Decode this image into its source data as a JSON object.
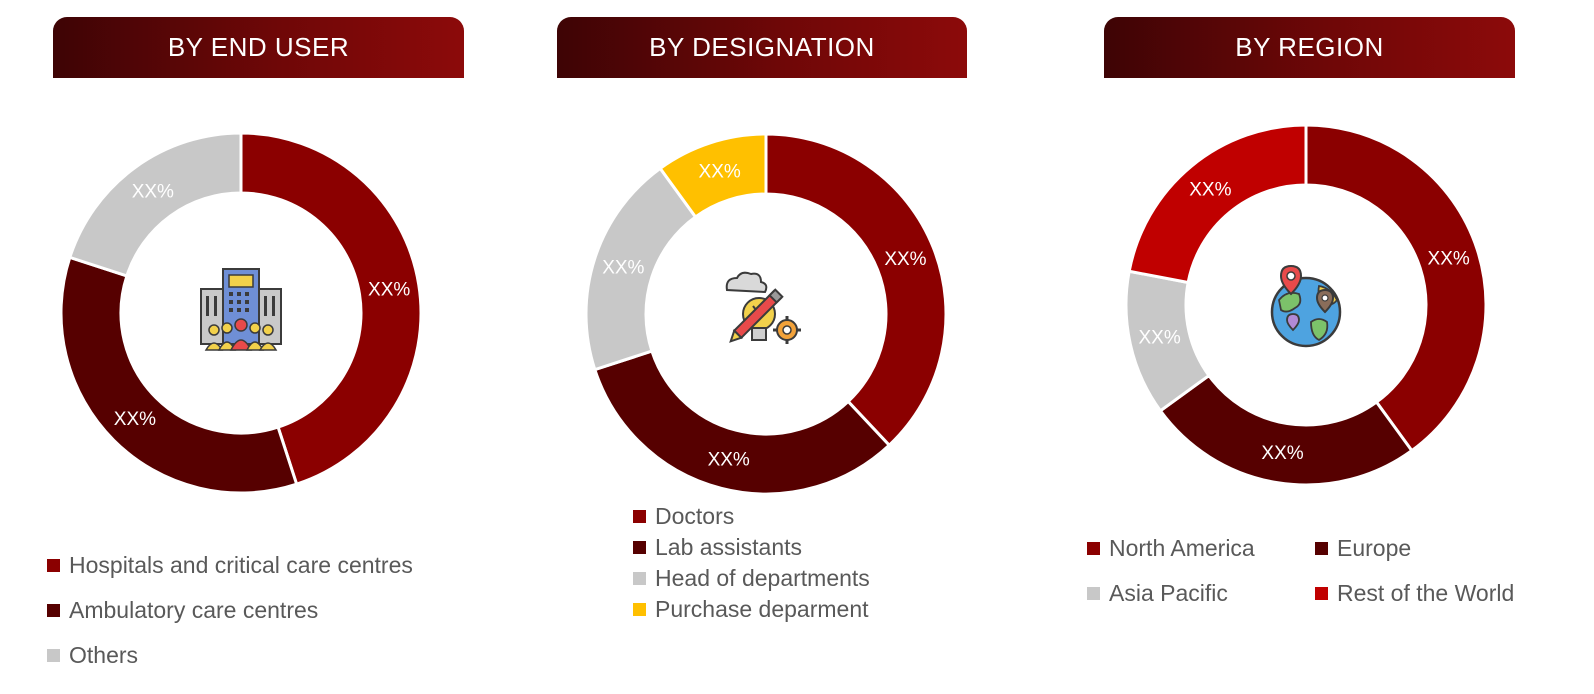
{
  "colors": {
    "red": "#8B0000",
    "dark_red": "#560000",
    "grey": "#C8C8C8",
    "yellow": "#FFC000",
    "bright_red": "#C00000"
  },
  "chart_data": [
    {
      "type": "pie",
      "title": "BY END USER",
      "donut": true,
      "center_icon": "hospital-building-people-icon",
      "slices": [
        {
          "name": "Hospitals and critical care centres",
          "value": 45,
          "label": "XX%",
          "color": "#8B0000"
        },
        {
          "name": "Ambulatory care centres",
          "value": 35,
          "label": "XX%",
          "color": "#560000"
        },
        {
          "name": "Others",
          "value": 20,
          "label": "XX%",
          "color": "#C8C8C8"
        }
      ],
      "legend_position": "bottom"
    },
    {
      "type": "pie",
      "title": "BY DESIGNATION",
      "donut": true,
      "center_icon": "idea-pencil-gear-icon",
      "slices": [
        {
          "name": "Doctors",
          "value": 38,
          "label": "XX%",
          "color": "#8B0000"
        },
        {
          "name": "Lab assistants",
          "value": 32,
          "label": "XX%",
          "color": "#560000"
        },
        {
          "name": "Head of departments",
          "value": 20,
          "label": "XX%",
          "color": "#C8C8C8"
        },
        {
          "name": "Purchase deparment",
          "value": 10,
          "label": "XX%",
          "color": "#FFC000"
        }
      ],
      "legend_position": "bottom"
    },
    {
      "type": "pie",
      "title": "BY REGION",
      "donut": true,
      "center_icon": "globe-location-pins-icon",
      "slices": [
        {
          "name": "North America",
          "value": 40,
          "label": "XX%",
          "color": "#8B0000"
        },
        {
          "name": "Europe",
          "value": 25,
          "label": "XX%",
          "color": "#560000"
        },
        {
          "name": "Asia Pacific",
          "value": 13,
          "label": "XX%",
          "color": "#C8C8C8"
        },
        {
          "name": "Rest of the World",
          "value": 22,
          "label": "XX%",
          "color": "#C00000"
        }
      ],
      "legend_position": "bottom"
    }
  ]
}
